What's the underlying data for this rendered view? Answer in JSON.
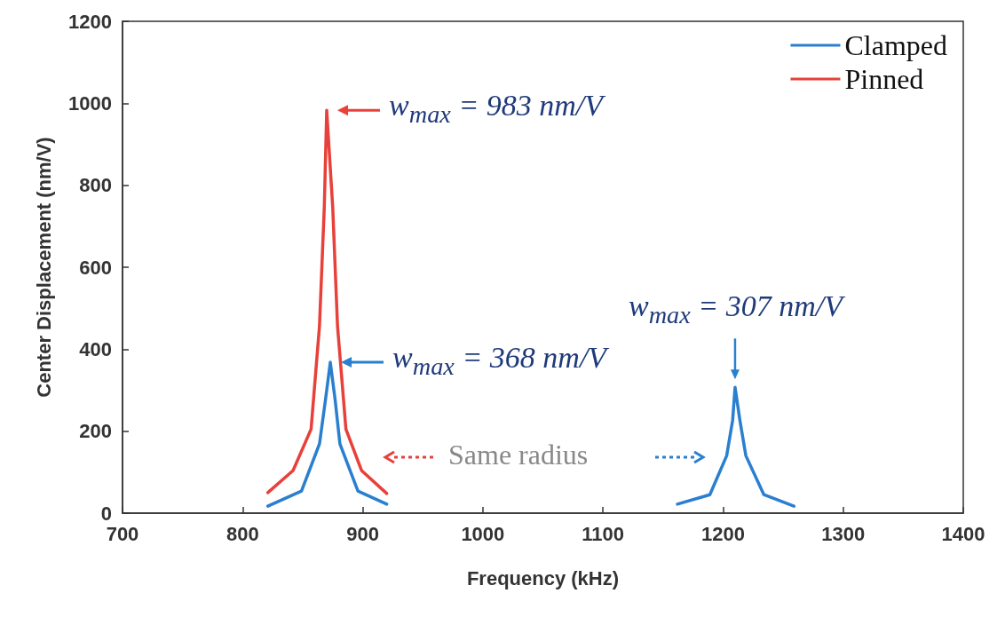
{
  "chart_data": {
    "type": "line",
    "xlabel": "Frequency (kHz)",
    "ylabel": "Center Displacement (nm/V)",
    "xlim": [
      700,
      1400
    ],
    "xticks": [
      700,
      800,
      900,
      1000,
      1100,
      1200,
      1300,
      1400
    ],
    "ylim": [
      0,
      1200
    ],
    "yticks": [
      0,
      200,
      400,
      600,
      800,
      1000,
      1200
    ],
    "legend": "top right",
    "line_style": "solid",
    "series": [
      {
        "name": "Clamped",
        "color": "#2a7fcf",
        "x": [
          821,
          849,
          864,
          869,
          873,
          877,
          881,
          896,
          920,
          1040,
          1162,
          1189,
          1203,
          1208,
          1210,
          1214,
          1219,
          1234,
          1259
        ],
        "values": [
          17,
          54,
          169,
          277,
          368,
          277,
          169,
          54,
          22,
          null,
          22,
          45,
          140,
          227,
          307,
          227,
          140,
          45,
          17
        ]
      },
      {
        "name": "Pinned",
        "color": "#e8403a",
        "x": [
          821,
          842,
          857,
          864,
          868,
          870,
          875,
          879,
          886,
          899,
          920
        ],
        "values": [
          50,
          104,
          205,
          457,
          747,
          983,
          747,
          457,
          205,
          104,
          48
        ]
      }
    ],
    "annotations": [
      {
        "text": "w$_{max}$ = 983 nm/V",
        "x": 870,
        "y": 983
      },
      {
        "text": "w$_{max}$ = 368 nm/V",
        "x": 873,
        "y": 368
      },
      {
        "text": "w$_{max}$ = 307 nm/V",
        "x": 1210,
        "y": 307
      },
      "Same radius"
    ]
  }
}
